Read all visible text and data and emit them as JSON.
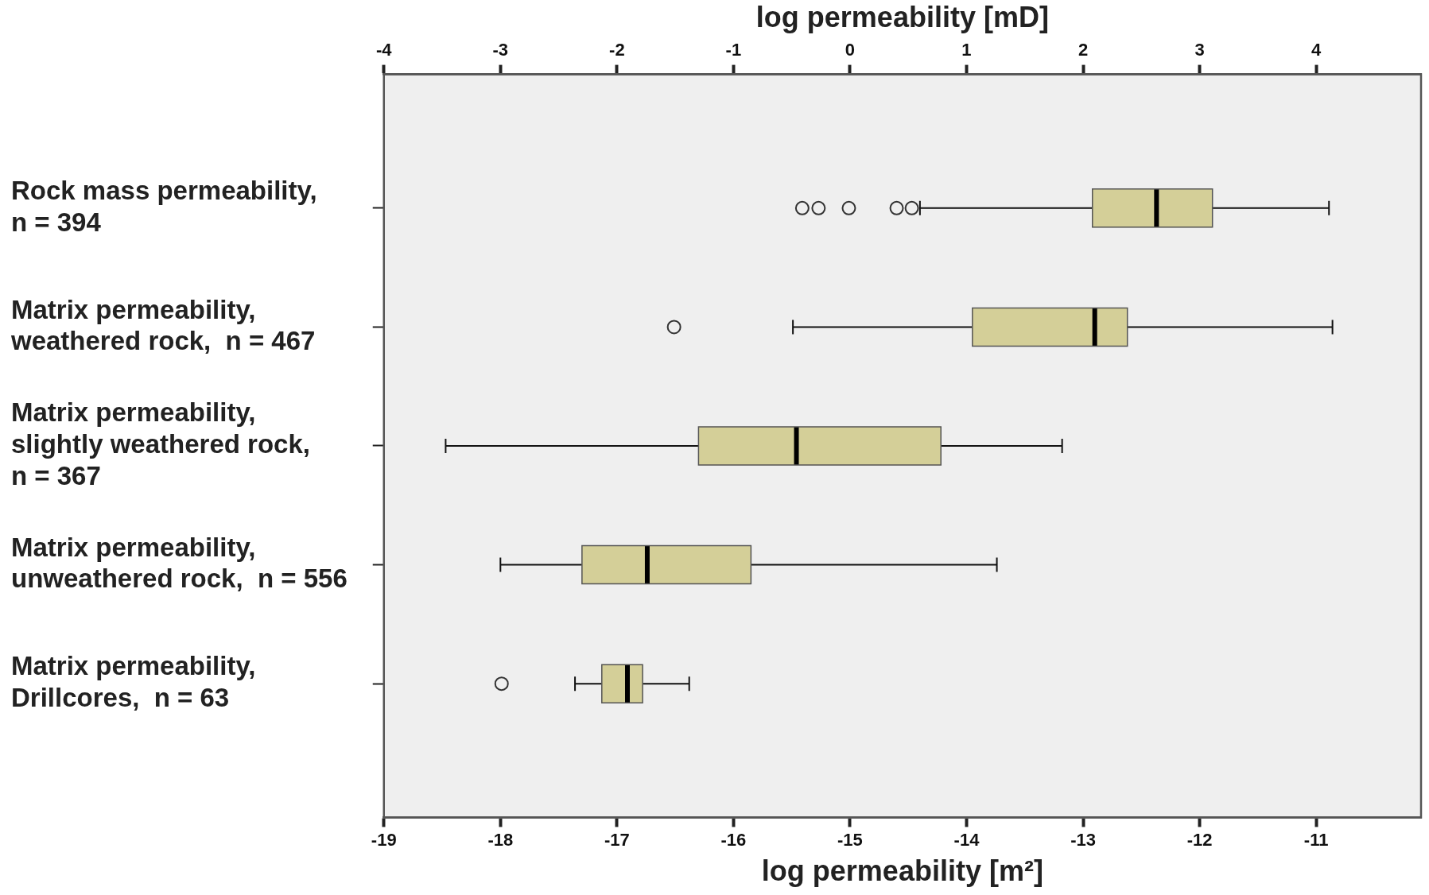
{
  "chart_data": {
    "type": "box",
    "orientation": "horizontal",
    "xlabel": "log permeability [m²]",
    "x2label": "log permeability [mD]",
    "categories": [
      "Rock mass permeability,\nn = 394",
      "Matrix permeability,\nweathered rock,  n = 467",
      "Matrix permeability,\nslightly weathered rock,\nn = 367",
      "Matrix permeability,\nunweathered rock,  n = 556",
      "Matrix permeability,\nDrillcores,  n = 63"
    ],
    "color": "#d4cf98",
    "boxes": [
      {
        "low": -14.4,
        "q1": -12.92,
        "median": -12.37,
        "q3": -11.89,
        "high": -10.89,
        "outliers": [
          -15.41,
          -15.27,
          -15.01,
          -14.6,
          -14.47
        ]
      },
      {
        "low": -15.49,
        "q1": -13.95,
        "median": -12.9,
        "q3": -12.62,
        "high": -10.86,
        "outliers": [
          -16.51
        ]
      },
      {
        "low": -18.47,
        "q1": -16.3,
        "median": -15.46,
        "q3": -14.22,
        "high": -13.18
      },
      {
        "low": -18.0,
        "q1": -17.3,
        "median": -16.74,
        "q3": -15.85,
        "high": -13.74
      },
      {
        "low": -17.36,
        "q1": -17.13,
        "median": -16.91,
        "q3": -16.78,
        "high": -16.38,
        "outliers": [
          -17.99
        ]
      }
    ],
    "xlim": [
      -19,
      -10.1
    ],
    "xticks": [
      -19,
      -18,
      -17,
      -16,
      -15,
      -14,
      -13,
      -12,
      -11
    ],
    "x2lim": [
      -4,
      4.9
    ],
    "x2ticks": [
      -4,
      -3,
      -2,
      -1,
      0,
      1,
      2,
      3,
      4
    ],
    "grid": false,
    "legend": false
  }
}
